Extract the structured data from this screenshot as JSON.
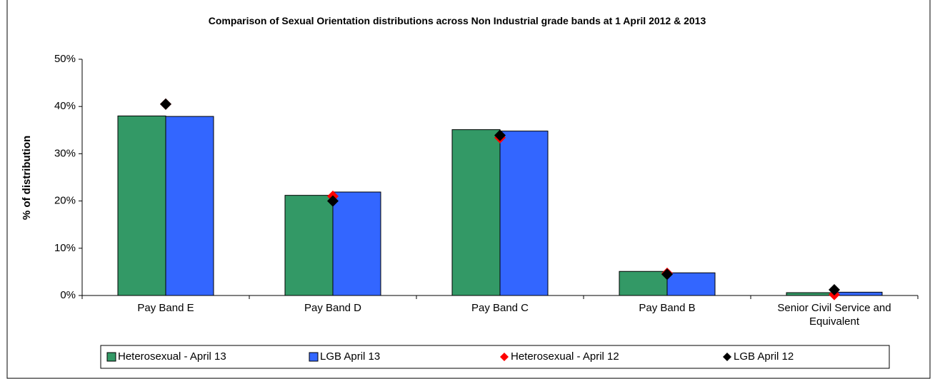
{
  "chart_data": {
    "type": "bar",
    "title": "Comparison of Sexual Orientation distributions across Non Industrial grade bands at 1 April 2012 & 2013",
    "ylabel": "% of distribution",
    "categories": [
      "Pay Band E",
      "Pay Band D",
      "Pay Band C",
      "Pay Band B",
      "Senior Civil Service and Equivalent"
    ],
    "series": [
      {
        "name": "Heterosexual - April 13",
        "color": "#339966",
        "mark": "bar",
        "values": [
          38.0,
          21.2,
          35.1,
          5.1,
          0.6
        ]
      },
      {
        "name": "LGB April 13",
        "color": "#3366ff",
        "mark": "bar",
        "values": [
          37.9,
          21.9,
          34.8,
          4.8,
          0.7
        ]
      },
      {
        "name": "Heterosexual - April 12",
        "color": "#ff0000",
        "mark": "diamond",
        "values": [
          40.5,
          21.0,
          33.4,
          4.7,
          0.2
        ]
      },
      {
        "name": "LGB April 12",
        "color": "#000000",
        "mark": "diamond",
        "values": [
          40.5,
          20.0,
          33.9,
          4.5,
          1.2
        ]
      }
    ],
    "ylim": [
      0,
      50
    ],
    "yticks": [
      {
        "value": 0,
        "label": "0%"
      },
      {
        "value": 10,
        "label": "10%"
      },
      {
        "value": 20,
        "label": "20%"
      },
      {
        "value": 30,
        "label": "30%"
      },
      {
        "value": 40,
        "label": "40%"
      },
      {
        "value": 50,
        "label": "50%"
      }
    ],
    "legend": "bottom"
  }
}
